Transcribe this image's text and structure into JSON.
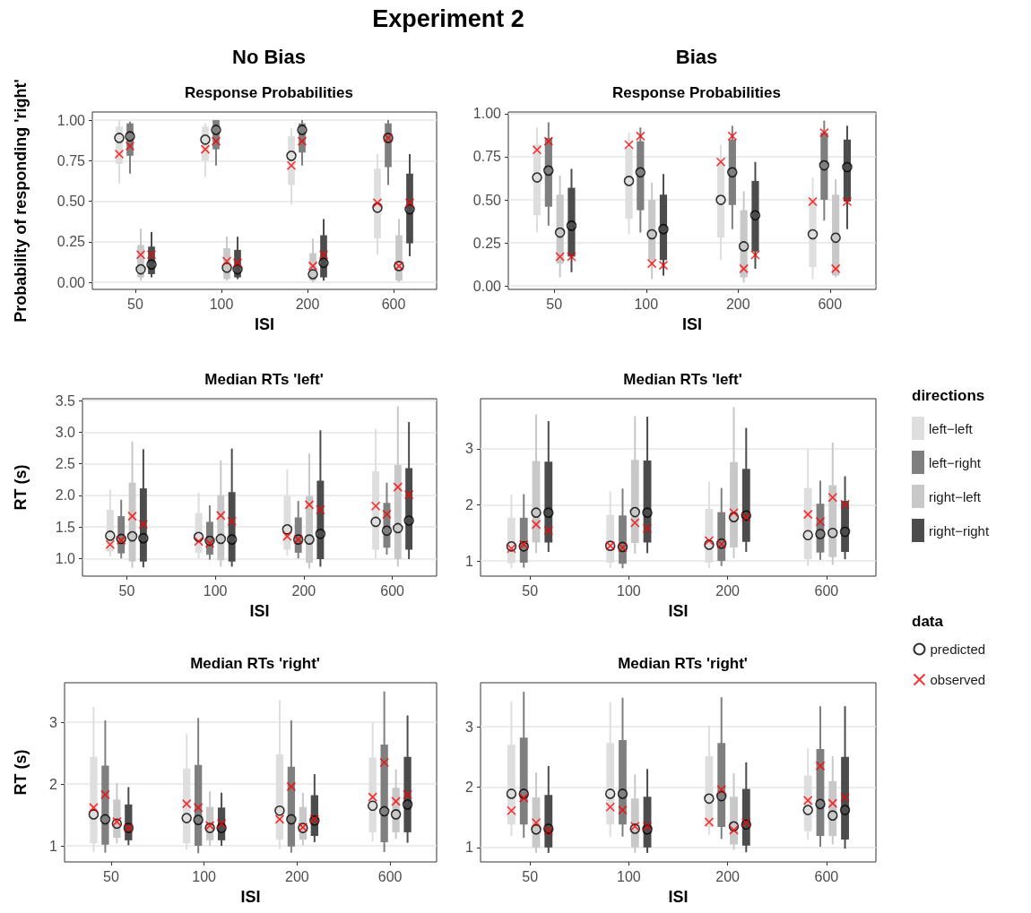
{
  "chart_data": [
    {
      "type": "bar",
      "title": "Response Probabilities",
      "subtitle": "No Bias",
      "annotations": [
        "Experiment 2"
      ],
      "xlabel": "ISI",
      "ylabel": "Probability of responding 'right'",
      "categories": [
        "50",
        "100",
        "200",
        "600"
      ],
      "ylim": [
        -0.044,
        1.05
      ],
      "yticks": [
        {
          "value": 0,
          "label": "0.00"
        },
        {
          "value": 0.25,
          "label": "0.25"
        },
        {
          "value": 0.5,
          "label": "0.50"
        },
        {
          "value": 0.75,
          "label": "0.75"
        },
        {
          "value": 1,
          "label": "1.00"
        }
      ],
      "grid": "y",
      "series": [
        {
          "color": "#dedede",
          "base": [
            0.73,
            0.75,
            0.6,
            0.27
          ],
          "values": [
            0.23,
            0.21,
            0.3,
            0.43
          ],
          "errors": [
            [
              0.61,
              1.0
            ],
            [
              0.65,
              0.98
            ],
            [
              0.48,
              0.95
            ],
            [
              0.17,
              0.79
            ]
          ]
        },
        {
          "color": "#7f7f7f",
          "base": [
            0.78,
            0.82,
            0.8,
            0.71
          ],
          "values": [
            0.2,
            0.18,
            0.18,
            0.27
          ],
          "errors": [
            [
              0.67,
              0.99
            ],
            [
              0.72,
              1.0
            ],
            [
              0.72,
              1.0
            ],
            [
              0.6,
              1.0
            ]
          ]
        },
        {
          "color": "#c8c8c8",
          "base": [
            0.03,
            0.02,
            0.01,
            0.01
          ],
          "values": [
            0.2,
            0.19,
            0.17,
            0.28
          ],
          "errors": [
            [
              0.01,
              0.33
            ],
            [
              0.01,
              0.28
            ],
            [
              0.0,
              0.27
            ],
            [
              0.0,
              0.39
            ]
          ]
        },
        {
          "color": "#4c4c4c",
          "base": [
            0.05,
            0.03,
            0.03,
            0.24
          ],
          "values": [
            0.17,
            0.17,
            0.26,
            0.43
          ],
          "errors": [
            [
              0.03,
              0.31
            ],
            [
              0.02,
              0.28
            ],
            [
              0.01,
              0.39
            ],
            [
              0.16,
              0.79
            ]
          ]
        },
        {
          "type": "scatter",
          "marker": "circle",
          "color": "#000000",
          "x": [
            "50",
            "50",
            "50",
            "50",
            "100",
            "100",
            "100",
            "100",
            "200",
            "200",
            "200",
            "200",
            "600",
            "600",
            "600",
            "600"
          ],
          "values": [
            0.89,
            0.9,
            0.08,
            0.11,
            0.88,
            0.94,
            0.09,
            0.08,
            0.78,
            0.94,
            0.05,
            0.12,
            0.46,
            0.89,
            0.1,
            0.45
          ]
        },
        {
          "type": "scatter",
          "marker": "cross",
          "color": "#ff0000",
          "x": [
            "50",
            "50",
            "50",
            "50",
            "100",
            "100",
            "100",
            "100",
            "200",
            "200",
            "200",
            "200",
            "600",
            "600",
            "600",
            "600"
          ],
          "values": [
            0.79,
            0.84,
            0.17,
            0.17,
            0.82,
            0.87,
            0.13,
            0.12,
            0.72,
            0.87,
            0.1,
            0.17,
            0.49,
            0.89,
            0.1,
            0.49
          ]
        }
      ]
    },
    {
      "type": "bar",
      "title": "Response Probabilities",
      "subtitle": "Bias",
      "xlabel": "ISI",
      "categories": [
        "50",
        "100",
        "200",
        "600"
      ],
      "ylim": [
        -0.02,
        1.01
      ],
      "yticks": [
        {
          "value": 0,
          "label": "0.00"
        },
        {
          "value": 0.25,
          "label": "0.25"
        },
        {
          "value": 0.5,
          "label": "0.50"
        },
        {
          "value": 0.75,
          "label": "0.75"
        },
        {
          "value": 1,
          "label": "1.00"
        }
      ],
      "grid": "y",
      "series": [
        {
          "color": "#dedede",
          "base": [
            0.41,
            0.39,
            0.28,
            0.11
          ],
          "values": [
            0.41,
            0.41,
            0.44,
            0.4
          ],
          "errors": [
            [
              0.31,
              0.92
            ],
            [
              0.3,
              0.89
            ],
            [
              0.15,
              0.82
            ],
            [
              0.04,
              0.63
            ]
          ]
        },
        {
          "color": "#7f7f7f",
          "base": [
            0.46,
            0.44,
            0.47,
            0.5
          ],
          "values": [
            0.4,
            0.4,
            0.38,
            0.39
          ],
          "errors": [
            [
              0.35,
              0.95
            ],
            [
              0.31,
              0.92
            ],
            [
              0.33,
              0.93
            ],
            [
              0.38,
              0.96
            ]
          ]
        },
        {
          "color": "#c8c8c8",
          "base": [
            0.13,
            0.15,
            0.05,
            0.06
          ],
          "values": [
            0.4,
            0.35,
            0.39,
            0.47
          ],
          "errors": [
            [
              0.05,
              0.64
            ],
            [
              0.04,
              0.6
            ],
            [
              0.02,
              0.55
            ],
            [
              0.05,
              0.62
            ]
          ]
        },
        {
          "color": "#4c4c4c",
          "base": [
            0.17,
            0.15,
            0.2,
            0.49
          ],
          "values": [
            0.4,
            0.38,
            0.41,
            0.36
          ],
          "errors": [
            [
              0.08,
              0.68
            ],
            [
              0.06,
              0.65
            ],
            [
              0.1,
              0.72
            ],
            [
              0.33,
              0.93
            ]
          ]
        },
        {
          "type": "scatter",
          "marker": "circle",
          "color": "#000000",
          "x": [
            "50",
            "50",
            "50",
            "50",
            "100",
            "100",
            "100",
            "100",
            "200",
            "200",
            "200",
            "200",
            "600",
            "600",
            "600",
            "600"
          ],
          "values": [
            0.63,
            0.67,
            0.31,
            0.35,
            0.61,
            0.66,
            0.3,
            0.33,
            0.5,
            0.66,
            0.23,
            0.41,
            0.3,
            0.7,
            0.28,
            0.69
          ]
        },
        {
          "type": "scatter",
          "marker": "cross",
          "color": "#ff0000",
          "x": [
            "50",
            "50",
            "50",
            "50",
            "100",
            "100",
            "100",
            "100",
            "200",
            "200",
            "200",
            "200",
            "600",
            "600",
            "600",
            "600"
          ],
          "values": [
            0.79,
            0.84,
            0.17,
            0.17,
            0.82,
            0.87,
            0.13,
            0.12,
            0.72,
            0.87,
            0.1,
            0.18,
            0.49,
            0.89,
            0.1,
            0.49
          ]
        }
      ]
    },
    {
      "type": "bar",
      "title": "Median RTs 'left'",
      "xlabel": "ISI",
      "ylabel": "RT (s)",
      "categories": [
        "50",
        "100",
        "200",
        "600"
      ],
      "ylim": [
        0.72,
        3.53
      ],
      "yticks": [
        {
          "value": 1,
          "label": "1.0"
        },
        {
          "value": 1.5,
          "label": "1.5"
        },
        {
          "value": 2,
          "label": "2.0"
        },
        {
          "value": 2.5,
          "label": "2.5"
        },
        {
          "value": 3,
          "label": "3.0"
        },
        {
          "value": 3.5,
          "label": "3.5"
        }
      ],
      "grid": "y",
      "series": [
        {
          "color": "#dedede",
          "base": [
            1.11,
            1.09,
            1.14,
            1.14
          ],
          "values": [
            0.66,
            0.63,
            0.85,
            1.24
          ],
          "errors": [
            [
              1.03,
              2.09
            ],
            [
              1.0,
              2.04
            ],
            [
              1.04,
              2.41
            ],
            [
              1.0,
              3.05
            ]
          ]
        },
        {
          "color": "#7f7f7f",
          "base": [
            1.08,
            1.06,
            1.09,
            1.17
          ],
          "values": [
            0.59,
            0.52,
            0.56,
            0.71
          ],
          "errors": [
            [
              1.0,
              1.93
            ],
            [
              0.98,
              1.84
            ],
            [
              1.0,
              1.91
            ],
            [
              1.06,
              2.2
            ]
          ]
        },
        {
          "color": "#c8c8c8",
          "base": [
            0.95,
            0.97,
            0.93,
            0.99
          ],
          "values": [
            1.25,
            1.03,
            1.06,
            1.49
          ],
          "errors": [
            [
              0.85,
              2.85
            ],
            [
              0.87,
              2.55
            ],
            [
              0.84,
              2.66
            ],
            [
              0.87,
              3.41
            ]
          ]
        },
        {
          "color": "#4c4c4c",
          "base": [
            0.95,
            0.95,
            0.99,
            1.14
          ],
          "values": [
            1.16,
            1.1,
            1.24,
            1.29
          ],
          "errors": [
            [
              0.86,
              2.73
            ],
            [
              0.87,
              2.74
            ],
            [
              0.87,
              3.03
            ],
            [
              0.99,
              3.16
            ]
          ]
        },
        {
          "type": "scatter",
          "marker": "circle",
          "color": "#000000",
          "x": [
            "50",
            "50",
            "50",
            "50",
            "100",
            "100",
            "100",
            "100",
            "200",
            "200",
            "200",
            "200",
            "600",
            "600",
            "600",
            "600"
          ],
          "values": [
            1.36,
            1.31,
            1.35,
            1.32,
            1.34,
            1.28,
            1.31,
            1.3,
            1.46,
            1.3,
            1.3,
            1.39,
            1.58,
            1.44,
            1.48,
            1.6
          ]
        },
        {
          "type": "scatter",
          "marker": "cross",
          "color": "#ff0000",
          "x": [
            "50",
            "50",
            "50",
            "50",
            "100",
            "100",
            "100",
            "100",
            "200",
            "200",
            "200",
            "200",
            "600",
            "600",
            "600",
            "600"
          ],
          "values": [
            1.22,
            1.29,
            1.67,
            1.54,
            1.27,
            1.24,
            1.68,
            1.59,
            1.35,
            1.3,
            1.85,
            1.77,
            1.83,
            1.7,
            2.13,
            2.01
          ]
        }
      ]
    },
    {
      "type": "bar",
      "title": "Median RTs 'left'",
      "xlabel": "ISI",
      "categories": [
        "50",
        "100",
        "200",
        "600"
      ],
      "ylim": [
        0.73,
        3.89
      ],
      "yticks": [
        1,
        2,
        3
      ],
      "grid": "y",
      "legend": "right",
      "legend_title": "directions",
      "series": [
        {
          "name": "left−left",
          "color": "#dedede",
          "base": [
            0.96,
            0.97,
            0.97,
            1.03
          ],
          "values": [
            0.81,
            0.85,
            0.96,
            1.27
          ],
          "errors": [
            [
              0.87,
              2.18
            ],
            [
              0.87,
              2.24
            ],
            [
              0.87,
              2.41
            ],
            [
              0.91,
              2.99
            ]
          ]
        },
        {
          "name": "left−right",
          "color": "#7f7f7f",
          "base": [
            0.97,
            0.95,
            1.0,
            1.15
          ],
          "values": [
            0.8,
            0.86,
            0.87,
            0.87
          ],
          "errors": [
            [
              0.88,
              2.19
            ],
            [
              0.87,
              2.29
            ],
            [
              0.91,
              2.3
            ],
            [
              1.02,
              2.43
            ]
          ]
        },
        {
          "name": "right−left",
          "color": "#c8c8c8",
          "base": [
            1.33,
            1.32,
            1.24,
            1.07
          ],
          "values": [
            1.45,
            1.48,
            1.52,
            1.28
          ],
          "errors": [
            [
              1.14,
              3.61
            ],
            [
              1.13,
              3.58
            ],
            [
              1.05,
              3.74
            ],
            [
              0.93,
              3.11
            ]
          ]
        },
        {
          "name": "right−right",
          "color": "#4c4c4c",
          "base": [
            1.33,
            1.33,
            1.34,
            1.16
          ],
          "values": [
            1.44,
            1.46,
            1.3,
            0.91
          ],
          "errors": [
            [
              1.16,
              3.49
            ],
            [
              1.14,
              3.57
            ],
            [
              1.16,
              3.37
            ],
            [
              1.03,
              2.51
            ]
          ]
        },
        {
          "type": "scatter",
          "marker": "circle",
          "color": "#000000",
          "x": [
            "50",
            "50",
            "50",
            "50",
            "100",
            "100",
            "100",
            "100",
            "200",
            "200",
            "200",
            "200",
            "600",
            "600",
            "600",
            "600"
          ],
          "values": [
            1.26,
            1.26,
            1.86,
            1.86,
            1.27,
            1.25,
            1.87,
            1.86,
            1.29,
            1.31,
            1.78,
            1.81,
            1.46,
            1.48,
            1.5,
            1.52
          ]
        },
        {
          "type": "scatter",
          "marker": "cross",
          "color": "#ff0000",
          "x": [
            "50",
            "50",
            "50",
            "50",
            "100",
            "100",
            "100",
            "100",
            "200",
            "200",
            "200",
            "200",
            "600",
            "600",
            "600",
            "600"
          ],
          "values": [
            1.22,
            1.29,
            1.65,
            1.54,
            1.27,
            1.24,
            1.68,
            1.58,
            1.36,
            1.3,
            1.86,
            1.78,
            1.83,
            1.7,
            2.13,
            2.01
          ]
        }
      ]
    },
    {
      "type": "bar",
      "title": "Median RTs 'right'",
      "xlabel": "ISI",
      "ylabel": "RT (s)",
      "categories": [
        "50",
        "100",
        "200",
        "600"
      ],
      "ylim": [
        0.74,
        3.64
      ],
      "yticks": [
        1,
        2,
        3
      ],
      "grid": "y",
      "series": [
        {
          "color": "#dedede",
          "base": [
            1.04,
            1.04,
            1.1,
            1.22
          ],
          "values": [
            1.4,
            1.21,
            1.38,
            1.21
          ],
          "errors": [
            [
              0.9,
              3.25
            ],
            [
              0.94,
              2.81
            ],
            [
              0.95,
              3.36
            ],
            [
              1.07,
              2.99
            ]
          ]
        },
        {
          "color": "#7f7f7f",
          "base": [
            1.02,
            1.0,
            0.99,
            1.06
          ],
          "values": [
            1.28,
            1.31,
            1.29,
            1.58
          ],
          "errors": [
            [
              0.89,
              3.03
            ],
            [
              0.88,
              3.07
            ],
            [
              0.89,
              3.03
            ],
            [
              0.9,
              3.5
            ]
          ]
        },
        {
          "color": "#c8c8c8",
          "base": [
            1.13,
            1.09,
            1.1,
            1.22
          ],
          "values": [
            0.62,
            0.54,
            0.53,
            0.72
          ],
          "errors": [
            [
              1.04,
              2.02
            ],
            [
              1.0,
              1.88
            ],
            [
              1.01,
              1.86
            ],
            [
              1.11,
              2.24
            ]
          ]
        },
        {
          "color": "#4c4c4c",
          "base": [
            1.09,
            1.09,
            1.16,
            1.22
          ],
          "values": [
            0.58,
            0.53,
            0.66,
            1.22
          ],
          "errors": [
            [
              1.01,
              1.95
            ],
            [
              1.0,
              1.86
            ],
            [
              1.06,
              2.16
            ],
            [
              1.05,
              3.11
            ]
          ]
        },
        {
          "type": "scatter",
          "marker": "circle",
          "color": "#000000",
          "x": [
            "50",
            "50",
            "50",
            "50",
            "100",
            "100",
            "100",
            "100",
            "200",
            "200",
            "200",
            "200",
            "600",
            "600",
            "600",
            "600"
          ],
          "values": [
            1.51,
            1.43,
            1.36,
            1.29,
            1.45,
            1.42,
            1.29,
            1.29,
            1.57,
            1.43,
            1.29,
            1.41,
            1.65,
            1.56,
            1.51,
            1.67
          ]
        },
        {
          "type": "scatter",
          "marker": "cross",
          "color": "#ff0000",
          "x": [
            "50",
            "50",
            "50",
            "50",
            "100",
            "100",
            "100",
            "100",
            "200",
            "200",
            "200",
            "200",
            "600",
            "600",
            "600",
            "600"
          ],
          "values": [
            1.62,
            1.83,
            1.39,
            1.29,
            1.68,
            1.62,
            1.33,
            1.36,
            1.43,
            1.96,
            1.3,
            1.43,
            1.79,
            2.35,
            1.72,
            1.83
          ]
        }
      ]
    },
    {
      "type": "bar",
      "title": "Median RTs 'right'",
      "xlabel": "ISI",
      "categories": [
        "50",
        "100",
        "200",
        "600"
      ],
      "ylim": [
        0.76,
        3.73
      ],
      "yticks": [
        1,
        2,
        3
      ],
      "grid": "y",
      "legend": "right",
      "legend_title": "data",
      "series": [
        {
          "color": "#dedede",
          "base": [
            1.38,
            1.38,
            1.34,
            1.27
          ],
          "values": [
            1.32,
            1.35,
            1.17,
            0.92
          ],
          "errors": [
            [
              1.19,
              3.42
            ],
            [
              1.18,
              3.41
            ],
            [
              1.21,
              3.02
            ],
            [
              1.13,
              2.64
            ]
          ]
        },
        {
          "color": "#7f7f7f",
          "base": [
            1.38,
            1.38,
            1.34,
            1.19
          ],
          "values": [
            1.44,
            1.4,
            1.39,
            1.44
          ],
          "errors": [
            [
              1.16,
              3.58
            ],
            [
              1.18,
              3.48
            ],
            [
              1.14,
              3.49
            ],
            [
              1.01,
              3.34
            ]
          ]
        },
        {
          "color": "#c8c8c8",
          "base": [
            1.0,
            1.0,
            1.05,
            1.19
          ],
          "values": [
            0.83,
            0.81,
            0.79,
            0.91
          ],
          "errors": [
            [
              0.91,
              2.24
            ],
            [
              0.91,
              2.21
            ],
            [
              0.96,
              2.23
            ],
            [
              1.05,
              2.51
            ]
          ]
        },
        {
          "color": "#4c4c4c",
          "base": [
            1.0,
            1.0,
            1.03,
            1.13
          ],
          "values": [
            0.87,
            0.84,
            0.94,
            1.37
          ],
          "errors": [
            [
              0.91,
              2.35
            ],
            [
              0.91,
              2.3
            ],
            [
              0.92,
              2.41
            ],
            [
              0.98,
              3.34
            ]
          ]
        },
        {
          "type": "scatter",
          "name": "predicted",
          "marker": "circle",
          "color": "#000000",
          "x": [
            "50",
            "50",
            "50",
            "50",
            "100",
            "100",
            "100",
            "100",
            "200",
            "200",
            "200",
            "200",
            "600",
            "600",
            "600",
            "600"
          ],
          "values": [
            1.89,
            1.89,
            1.3,
            1.31,
            1.89,
            1.89,
            1.31,
            1.3,
            1.81,
            1.85,
            1.35,
            1.38,
            1.62,
            1.72,
            1.53,
            1.62
          ]
        },
        {
          "type": "scatter",
          "name": "observed",
          "marker": "cross",
          "color": "#ff0000",
          "x": [
            "50",
            "50",
            "50",
            "50",
            "100",
            "100",
            "100",
            "100",
            "200",
            "200",
            "200",
            "200",
            "600",
            "600",
            "600",
            "600"
          ],
          "values": [
            1.61,
            1.82,
            1.41,
            1.28,
            1.67,
            1.62,
            1.35,
            1.35,
            1.42,
            1.96,
            1.29,
            1.41,
            1.78,
            2.35,
            1.73,
            1.83
          ]
        }
      ]
    }
  ]
}
